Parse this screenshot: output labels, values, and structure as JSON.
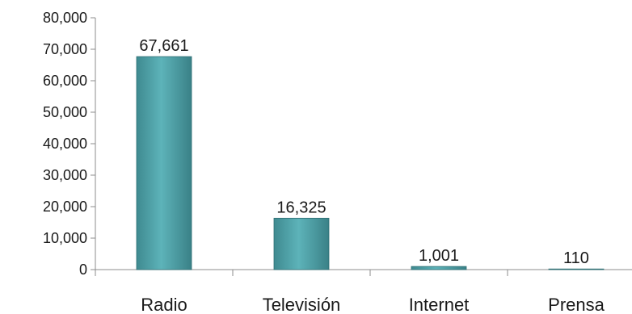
{
  "chart_data": {
    "type": "bar",
    "categories": [
      "Radio",
      "Televisión",
      "Internet",
      "Prensa"
    ],
    "values": [
      67661,
      16325,
      1001,
      110
    ],
    "data_labels": [
      "67,661",
      "16,325",
      "1,001",
      "110"
    ],
    "ylim": [
      0,
      80000
    ],
    "yticks": [
      0,
      10000,
      20000,
      30000,
      40000,
      50000,
      60000,
      70000,
      80000
    ],
    "ytick_labels": [
      "0",
      "10,000",
      "20,000",
      "30,000",
      "40,000",
      "50,000",
      "60,000",
      "70,000",
      "80,000"
    ],
    "grid": false,
    "legend": false,
    "bar_color": "#4fa3a9"
  }
}
